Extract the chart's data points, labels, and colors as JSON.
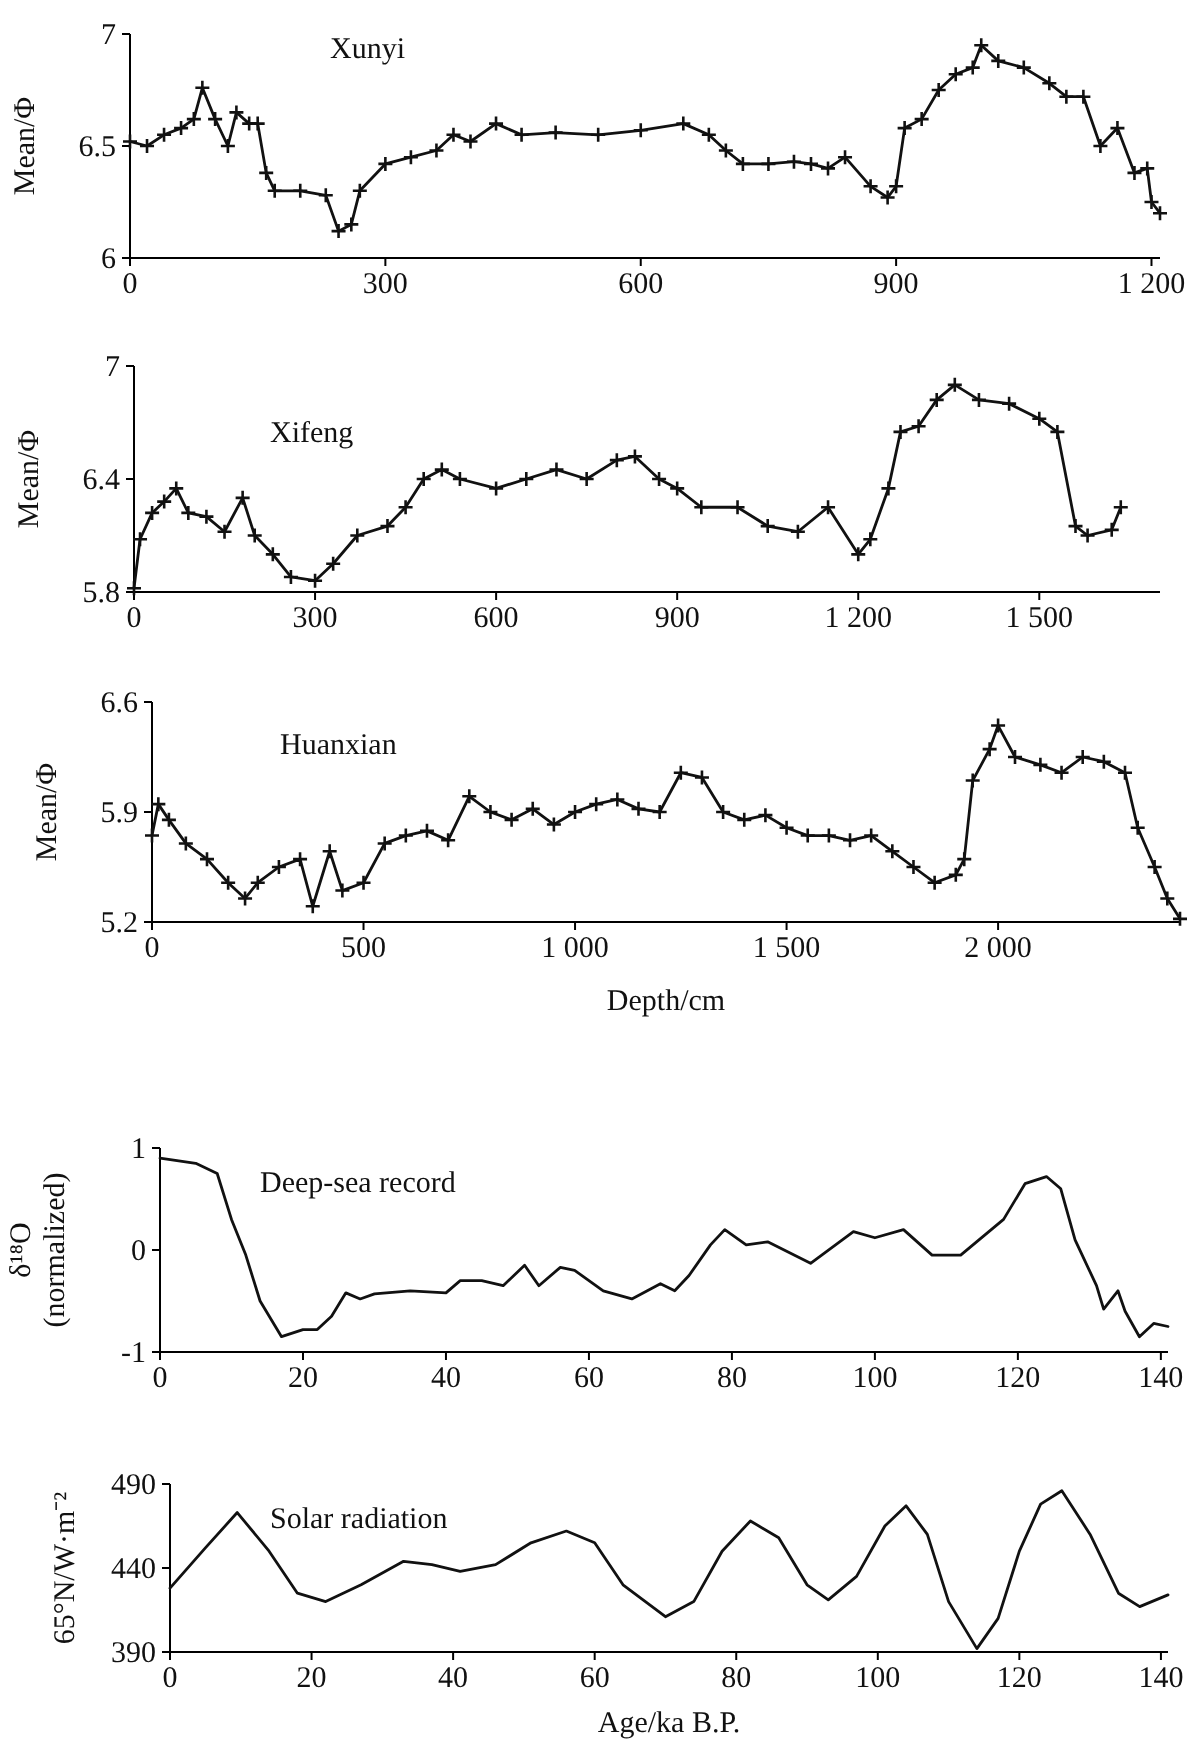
{
  "chart_data": [
    {
      "type": "line",
      "title": "Xunyi",
      "ylabel": "Mean/Φ",
      "marker": "cross",
      "xlim": [
        0,
        1210
      ],
      "xticks": [
        0,
        300,
        600,
        900,
        {
          "value": 1200,
          "label": "1 200"
        }
      ],
      "ylim": [
        6,
        7
      ],
      "yticks": [
        6,
        6.5,
        7
      ],
      "x": [
        0,
        20,
        40,
        60,
        75,
        85,
        100,
        115,
        125,
        140,
        150,
        160,
        170,
        200,
        230,
        245,
        260,
        270,
        300,
        330,
        360,
        380,
        400,
        430,
        460,
        500,
        550,
        600,
        650,
        680,
        700,
        720,
        750,
        780,
        800,
        820,
        840,
        870,
        890,
        900,
        910,
        930,
        950,
        970,
        990,
        1000,
        1020,
        1050,
        1080,
        1100,
        1120,
        1140,
        1160,
        1180,
        1195,
        1200,
        1210
      ],
      "series": [
        {
          "color": "#111111",
          "values": [
            6.52,
            6.5,
            6.55,
            6.58,
            6.62,
            6.76,
            6.62,
            6.5,
            6.65,
            6.6,
            6.6,
            6.38,
            6.3,
            6.3,
            6.28,
            6.12,
            6.15,
            6.3,
            6.42,
            6.45,
            6.48,
            6.55,
            6.52,
            6.6,
            6.55,
            6.56,
            6.55,
            6.57,
            6.6,
            6.55,
            6.48,
            6.42,
            6.42,
            6.43,
            6.42,
            6.4,
            6.45,
            6.32,
            6.27,
            6.32,
            6.58,
            6.62,
            6.75,
            6.82,
            6.85,
            6.95,
            6.88,
            6.85,
            6.78,
            6.72,
            6.72,
            6.5,
            6.58,
            6.38,
            6.4,
            6.25,
            6.2
          ]
        }
      ]
    },
    {
      "type": "line",
      "title": "Xifeng",
      "ylabel": "Mean/Φ",
      "marker": "cross",
      "xlim": [
        0,
        1700
      ],
      "xticks": [
        0,
        300,
        600,
        900,
        {
          "value": 1200,
          "label": "1 200"
        },
        {
          "value": 1500,
          "label": "1 500"
        }
      ],
      "ylim": [
        5.8,
        7
      ],
      "yticks": [
        5.8,
        6.4,
        7
      ],
      "x": [
        0,
        10,
        30,
        50,
        70,
        90,
        120,
        150,
        180,
        200,
        230,
        260,
        300,
        330,
        370,
        420,
        450,
        480,
        510,
        540,
        600,
        650,
        700,
        750,
        800,
        830,
        870,
        900,
        940,
        1000,
        1050,
        1100,
        1150,
        1200,
        1220,
        1250,
        1270,
        1300,
        1330,
        1360,
        1400,
        1450,
        1500,
        1530,
        1560,
        1580,
        1620,
        1635
      ],
      "series": [
        {
          "color": "#111111",
          "values": [
            5.82,
            6.08,
            6.22,
            6.28,
            6.35,
            6.22,
            6.2,
            6.12,
            6.3,
            6.1,
            6.0,
            5.88,
            5.86,
            5.95,
            6.1,
            6.15,
            6.25,
            6.4,
            6.45,
            6.4,
            6.35,
            6.4,
            6.45,
            6.4,
            6.5,
            6.52,
            6.4,
            6.35,
            6.25,
            6.25,
            6.15,
            6.12,
            6.25,
            6.0,
            6.08,
            6.35,
            6.65,
            6.68,
            6.82,
            6.9,
            6.82,
            6.8,
            6.72,
            6.65,
            6.15,
            6.1,
            6.13,
            6.25
          ]
        }
      ]
    },
    {
      "type": "line",
      "title": "Huanxian",
      "ylabel": "Mean/Φ",
      "xlabel": "Depth/cm",
      "marker": "cross",
      "xlim": [
        0,
        2430
      ],
      "xticks": [
        0,
        500,
        {
          "value": 1000,
          "label": "1 000"
        },
        {
          "value": 1500,
          "label": "1 500"
        },
        {
          "value": 2000,
          "label": "2 000"
        }
      ],
      "ylim": [
        5.2,
        6.6
      ],
      "yticks": [
        5.2,
        5.9,
        6.6
      ],
      "x": [
        0,
        15,
        40,
        80,
        130,
        180,
        220,
        250,
        300,
        350,
        380,
        420,
        450,
        500,
        550,
        600,
        650,
        700,
        750,
        800,
        850,
        900,
        950,
        1000,
        1050,
        1100,
        1150,
        1200,
        1250,
        1300,
        1350,
        1400,
        1450,
        1500,
        1550,
        1600,
        1650,
        1700,
        1750,
        1800,
        1850,
        1900,
        1920,
        1940,
        1980,
        2000,
        2040,
        2100,
        2150,
        2200,
        2250,
        2300,
        2330,
        2370,
        2400,
        2430
      ],
      "series": [
        {
          "color": "#111111",
          "values": [
            5.75,
            5.95,
            5.85,
            5.7,
            5.6,
            5.45,
            5.35,
            5.45,
            5.55,
            5.6,
            5.3,
            5.65,
            5.4,
            5.45,
            5.7,
            5.75,
            5.78,
            5.72,
            6.0,
            5.9,
            5.85,
            5.92,
            5.82,
            5.9,
            5.95,
            5.98,
            5.92,
            5.9,
            6.15,
            6.12,
            5.9,
            5.85,
            5.88,
            5.8,
            5.75,
            5.75,
            5.72,
            5.75,
            5.65,
            5.55,
            5.45,
            5.5,
            5.6,
            6.1,
            6.3,
            6.45,
            6.25,
            6.2,
            6.15,
            6.25,
            6.22,
            6.15,
            5.8,
            5.55,
            5.35,
            5.22
          ]
        }
      ]
    },
    {
      "type": "line",
      "title": "Deep-sea record",
      "ylabel": "δ¹⁸O\n(normalized)",
      "xlim": [
        0,
        141
      ],
      "xticks": [
        0,
        20,
        40,
        60,
        80,
        100,
        120,
        140
      ],
      "ylim": [
        -1,
        1
      ],
      "yticks": [
        -1,
        0,
        1
      ],
      "x": [
        0,
        5,
        8,
        10,
        12,
        14,
        17,
        20,
        22,
        24,
        26,
        28,
        30,
        35,
        40,
        42,
        45,
        48,
        51,
        53,
        56,
        58,
        62,
        66,
        70,
        72,
        74,
        77,
        79,
        82,
        85,
        91,
        97,
        100,
        104,
        108,
        112,
        118,
        121,
        124,
        126,
        128,
        131,
        132,
        134,
        135,
        137,
        139,
        141
      ],
      "series": [
        {
          "color": "#111111",
          "values": [
            0.9,
            0.85,
            0.75,
            0.3,
            -0.05,
            -0.5,
            -0.85,
            -0.78,
            -0.78,
            -0.65,
            -0.42,
            -0.48,
            -0.43,
            -0.4,
            -0.42,
            -0.3,
            -0.3,
            -0.35,
            -0.15,
            -0.35,
            -0.17,
            -0.2,
            -0.4,
            -0.48,
            -0.33,
            -0.4,
            -0.25,
            0.05,
            0.2,
            0.05,
            0.08,
            -0.13,
            0.18,
            0.12,
            0.2,
            -0.05,
            -0.05,
            0.3,
            0.65,
            0.72,
            0.6,
            0.1,
            -0.35,
            -0.58,
            -0.4,
            -0.6,
            -0.85,
            -0.72,
            -0.75
          ]
        }
      ]
    },
    {
      "type": "line",
      "title": "Solar radiation",
      "ylabel": "65°N/W·m⁻²",
      "xlabel": "Age/ka B.P.",
      "xlim": [
        0,
        141
      ],
      "xticks": [
        0,
        20,
        40,
        60,
        80,
        100,
        120,
        140
      ],
      "ylim": [
        390,
        490
      ],
      "yticks": [
        390,
        440,
        490
      ],
      "x": [
        0,
        5,
        9.5,
        14,
        18,
        22,
        27,
        33,
        37,
        41,
        46,
        51,
        56,
        60,
        64,
        70,
        74,
        78,
        82,
        86,
        90,
        93,
        97,
        101,
        104,
        107,
        110,
        114,
        117,
        120,
        123,
        126,
        130,
        134,
        137,
        141
      ],
      "series": [
        {
          "color": "#111111",
          "values": [
            428,
            452,
            473,
            450,
            425,
            420,
            430,
            444,
            442,
            438,
            442,
            455,
            462,
            455,
            430,
            411,
            420,
            450,
            468,
            458,
            430,
            421,
            435,
            465,
            477,
            460,
            420,
            392,
            410,
            450,
            478,
            486,
            460,
            425,
            417,
            424
          ]
        }
      ]
    }
  ]
}
